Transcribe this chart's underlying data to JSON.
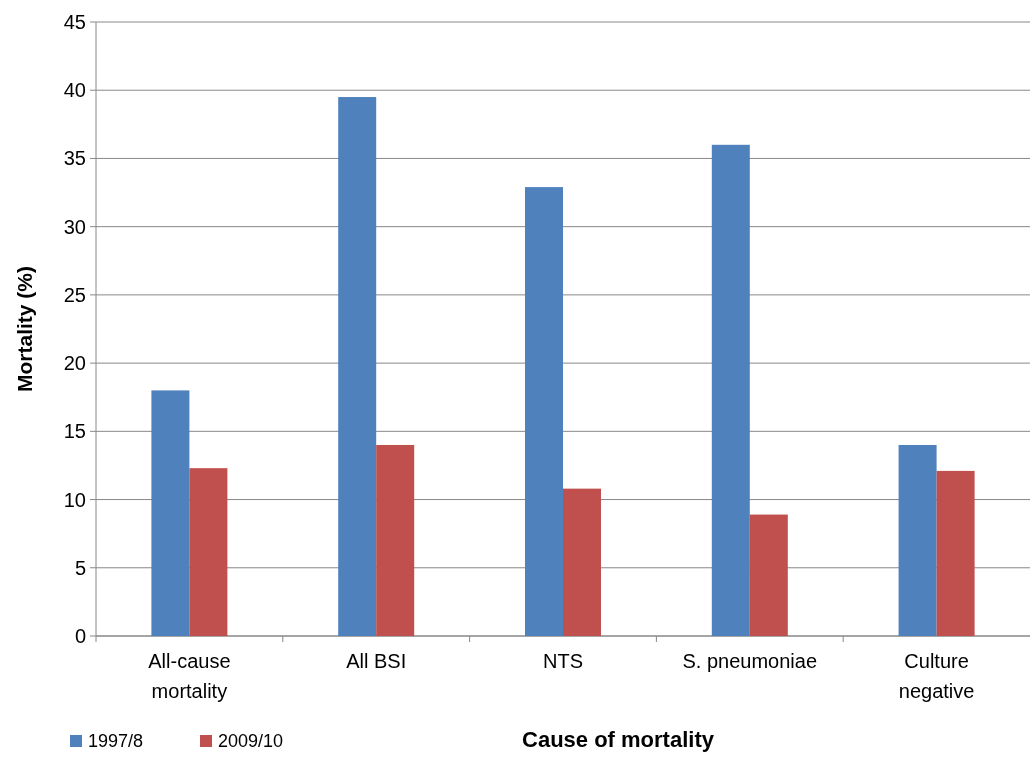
{
  "chart_data": {
    "type": "bar",
    "xlabel": "Cause of mortality",
    "ylabel": "Mortality (%)",
    "categories": [
      "All-cause\nmortality",
      "All BSI",
      "NTS",
      "S. pneumoniae",
      "Culture\nnegative"
    ],
    "series": [
      {
        "name": "1997/8",
        "color": "#4f81bd",
        "values": [
          18,
          39.5,
          32.9,
          36,
          14
        ]
      },
      {
        "name": "2009/10",
        "color": "#c0504d",
        "values": [
          12.3,
          14,
          10.8,
          8.9,
          12.1
        ]
      }
    ],
    "ylim": [
      0,
      45
    ],
    "yticks": [
      0,
      5,
      10,
      15,
      20,
      25,
      30,
      35,
      40,
      45
    ],
    "grid": "y",
    "legend": "bottom left"
  }
}
